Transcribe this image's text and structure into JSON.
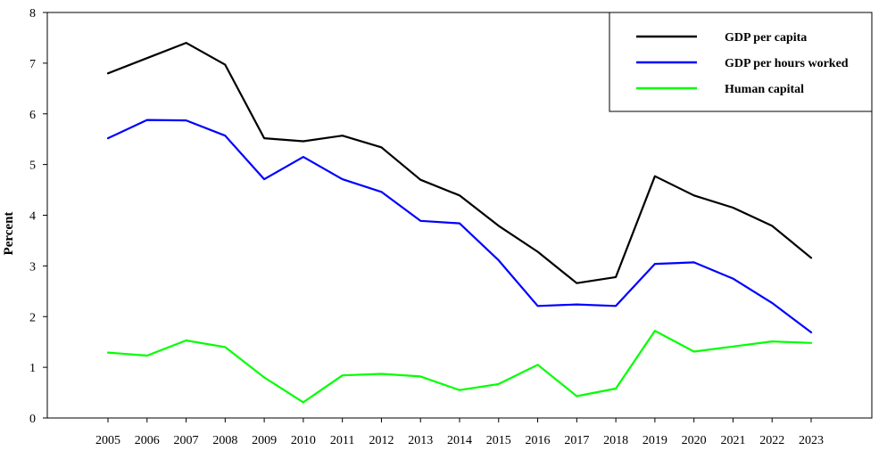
{
  "chart_data": {
    "type": "line",
    "title": "",
    "xlabel": "",
    "ylabel": "Percent",
    "ylim": [
      0,
      8
    ],
    "yticks": [
      0,
      1,
      2,
      3,
      4,
      5,
      6,
      7,
      8
    ],
    "x": [
      "2005",
      "2006",
      "2007",
      "2008",
      "2009",
      "2010",
      "2011",
      "2012",
      "2013",
      "2014",
      "2015",
      "2016",
      "2017",
      "2018",
      "2019",
      "2020",
      "2021",
      "2022",
      "2023"
    ],
    "grid": false,
    "legend_position": "top-right",
    "series": [
      {
        "name": "GDP per capita",
        "color": "#000000",
        "values": [
          6.8,
          7.1,
          7.4,
          6.97,
          5.52,
          5.46,
          5.57,
          5.34,
          4.7,
          4.39,
          3.79,
          3.28,
          2.66,
          2.78,
          4.77,
          4.39,
          4.15,
          3.79,
          3.16
        ]
      },
      {
        "name": "GDP per hours worked",
        "color": "#0000ff",
        "values": [
          5.52,
          5.88,
          5.87,
          5.57,
          4.71,
          5.15,
          4.71,
          4.46,
          3.89,
          3.84,
          3.11,
          2.21,
          2.24,
          2.21,
          3.04,
          3.07,
          2.75,
          2.27,
          1.69
        ]
      },
      {
        "name": "Human capital",
        "color": "#00ff00",
        "values": [
          1.29,
          1.23,
          1.53,
          1.4,
          0.8,
          0.31,
          0.84,
          0.87,
          0.82,
          0.55,
          0.67,
          1.05,
          0.43,
          0.58,
          1.72,
          1.31,
          1.41,
          1.51,
          1.48
        ]
      }
    ]
  }
}
